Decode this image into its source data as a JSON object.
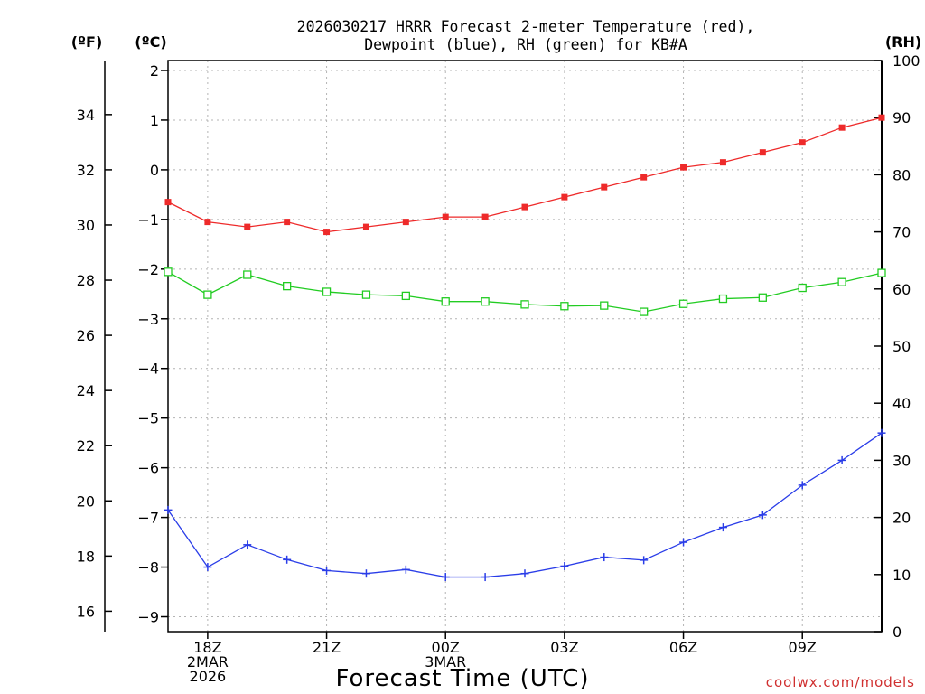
{
  "chart_data": {
    "type": "line",
    "title": [
      "2026030217 HRRR Forecast 2-meter Temperature (red),",
      "Dewpoint (blue), RH (green) for KB#A"
    ],
    "xlabel": "Forecast Time (UTC)",
    "credit": "coolwx.com/models",
    "units": {
      "f": "(ºF)",
      "c": "(ºC)",
      "rh": "(RH)"
    },
    "hours": [
      17,
      18,
      19,
      20,
      21,
      22,
      23,
      24,
      25,
      26,
      27,
      28,
      29,
      30,
      31,
      32,
      33,
      34,
      35
    ],
    "xlim": [
      17,
      35
    ],
    "x_ticks": [
      {
        "hour": 18,
        "lines": [
          "18Z",
          "2MAR",
          "2026"
        ]
      },
      {
        "hour": 21,
        "lines": [
          "21Z"
        ]
      },
      {
        "hour": 24,
        "lines": [
          "00Z",
          "3MAR"
        ]
      },
      {
        "hour": 27,
        "lines": [
          "03Z"
        ]
      },
      {
        "hour": 30,
        "lines": [
          "06Z"
        ]
      },
      {
        "hour": 33,
        "lines": [
          "09Z"
        ]
      }
    ],
    "ylim_c": [
      -9.3,
      2.2
    ],
    "y_ticks_c": [
      "2",
      "1",
      "0",
      "−1",
      "−2",
      "−3",
      "−4",
      "−5",
      "−6",
      "−7",
      "−8",
      "−9"
    ],
    "y_ticks_f": [
      "34",
      "32",
      "30",
      "28",
      "26",
      "24",
      "22",
      "20",
      "18",
      "16"
    ],
    "ylim_rh": [
      0,
      100
    ],
    "y_ticks_rh": [
      "100",
      "90",
      "80",
      "70",
      "60",
      "50",
      "40",
      "30",
      "20",
      "10",
      "0"
    ],
    "grid": true,
    "series": [
      {
        "name": "Temperature (°C)",
        "color": "#ee2a2a",
        "marker": "filled-square",
        "axis": "c",
        "values": [
          -0.65,
          -1.05,
          -1.15,
          -1.05,
          -1.25,
          -1.15,
          -1.05,
          -0.95,
          -0.95,
          -0.75,
          -0.55,
          -0.35,
          -0.15,
          0.05,
          0.15,
          0.35,
          0.55,
          0.85,
          1.05
        ]
      },
      {
        "name": "Dewpoint (°C)",
        "color": "#2a3de8",
        "marker": "plus",
        "axis": "c",
        "values": [
          -6.85,
          -8.0,
          -7.55,
          -7.85,
          -8.07,
          -8.13,
          -8.05,
          -8.2,
          -8.2,
          -8.13,
          -7.98,
          -7.8,
          -7.86,
          -7.5,
          -7.2,
          -6.95,
          -6.35,
          -5.85,
          -5.3
        ]
      },
      {
        "name": "RH (%)",
        "color": "#22cc22",
        "marker": "open-square",
        "axis": "rh",
        "values": [
          63,
          59,
          62.5,
          60.5,
          59.5,
          59,
          58.8,
          57.8,
          57.8,
          57.3,
          57,
          57.1,
          56,
          57.4,
          58.3,
          58.5,
          60.2,
          61.2,
          62.8
        ]
      }
    ]
  }
}
